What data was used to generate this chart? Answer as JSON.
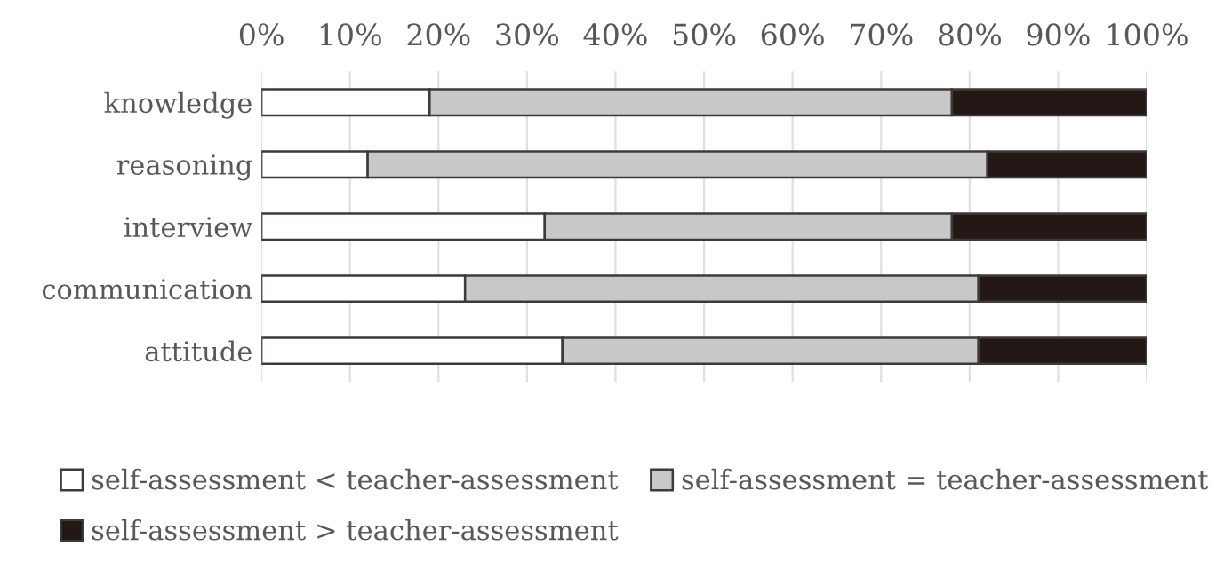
{
  "chart_data": {
    "type": "bar",
    "orientation": "horizontal",
    "stacked": true,
    "categories": [
      "knowledge",
      "reasoning",
      "interview",
      "communication",
      "attitude"
    ],
    "series": [
      {
        "name": "self-assessment < teacher-assessment",
        "color": "#ffffff",
        "values": [
          19,
          12,
          32,
          23,
          34
        ]
      },
      {
        "name": "self-assessment = teacher-assessment",
        "color": "#c8c8c8",
        "values": [
          59,
          70,
          46,
          58,
          47
        ]
      },
      {
        "name": "self-assessment > teacher-assessment",
        "color": "#231815",
        "values": [
          22,
          18,
          22,
          19,
          19
        ]
      }
    ],
    "xlim": [
      0,
      100
    ],
    "xticks": [
      {
        "value": 0,
        "label": "0%"
      },
      {
        "value": 10,
        "label": "10%"
      },
      {
        "value": 20,
        "label": "20%"
      },
      {
        "value": 30,
        "label": "30%"
      },
      {
        "value": 40,
        "label": "40%"
      },
      {
        "value": 50,
        "label": "50%"
      },
      {
        "value": 60,
        "label": "60%"
      },
      {
        "value": 70,
        "label": "70%"
      },
      {
        "value": 80,
        "label": "80%"
      },
      {
        "value": 90,
        "label": "90%"
      },
      {
        "value": 100,
        "label": "100%"
      }
    ],
    "grid": "x",
    "legend": "bottom"
  }
}
